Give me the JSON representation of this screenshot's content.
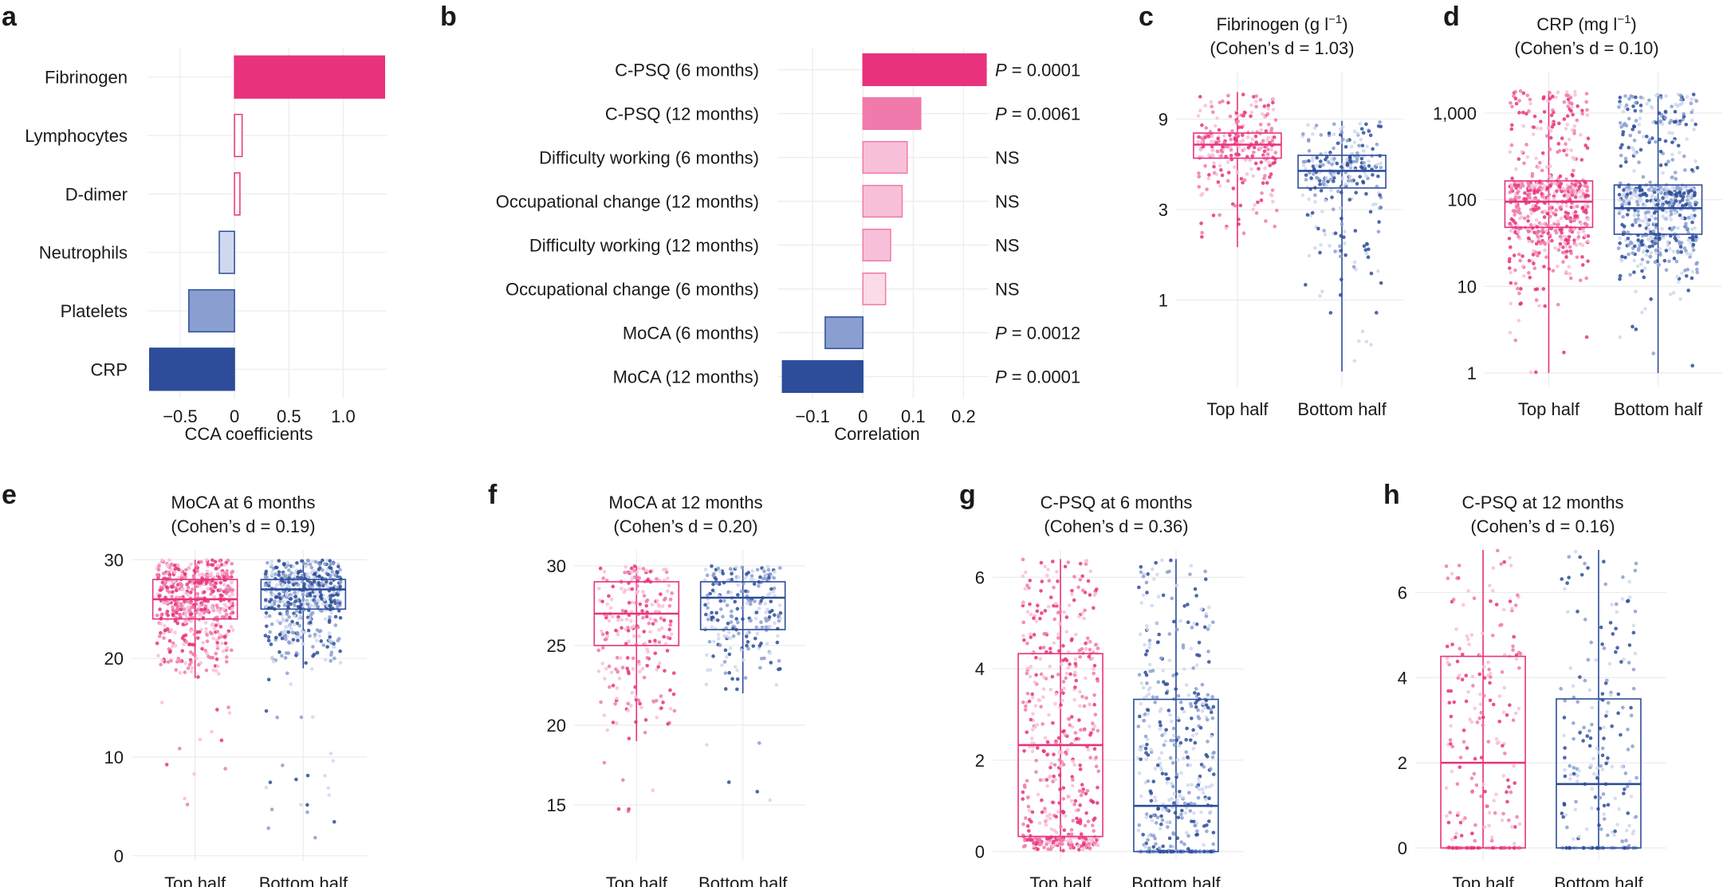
{
  "colors": {
    "pink": "#e8327c",
    "pink_mid": "#f07aab",
    "pink_light": "#f8c0d8",
    "blue": "#2d4d9a",
    "blue_mid": "#8a9fd0",
    "blue_light": "#cfd8ee",
    "grid": "#ececec"
  },
  "chart_data": [
    {
      "id": "a",
      "panel_label": "a",
      "type": "bar",
      "orientation": "horizontal",
      "title": "",
      "xlabel": "CCA coefficients",
      "categories": [
        "Fibrinogen",
        "Lymphocytes",
        "D-dimer",
        "Neutrophils",
        "Platelets",
        "CRP"
      ],
      "values": [
        1.38,
        0.07,
        0.05,
        -0.14,
        -0.42,
        -0.78
      ],
      "tone": [
        "pink_strong",
        "pink_outline",
        "pink_outline",
        "blue_light",
        "blue_mid",
        "blue_strong"
      ],
      "xlim": [
        -0.8,
        1.4
      ],
      "xticks": [
        -0.5,
        0,
        0.5,
        1.0
      ],
      "xtick_labels": [
        "−0.5",
        "0",
        "0.5",
        "1.0"
      ]
    },
    {
      "id": "b",
      "panel_label": "b",
      "type": "bar",
      "orientation": "horizontal",
      "title": "",
      "xlabel": "Correlation",
      "categories": [
        "C-PSQ (6 months)",
        "C-PSQ (12 months)",
        "Difficulty working (6 months)",
        "Occupational change (12 months)",
        "Difficulty working (12 months)",
        "Occupational change (6 months)",
        "MoCA (6 months)",
        "MoCA (12 months)"
      ],
      "values": [
        0.245,
        0.115,
        0.088,
        0.078,
        0.055,
        0.045,
        -0.075,
        -0.16
      ],
      "tone": [
        "pink_strong",
        "pink_mid",
        "pink_light",
        "pink_light",
        "pink_light",
        "pink_lighter",
        "blue_mid",
        "blue_strong"
      ],
      "annotations": [
        "P = 0.0001",
        "P = 0.0061",
        "NS",
        "NS",
        "NS",
        "NS",
        "P = 0.0012",
        "P = 0.0001"
      ],
      "xlim": [
        -0.17,
        0.25
      ],
      "xticks": [
        -0.1,
        0,
        0.1,
        0.2
      ],
      "xtick_labels": [
        "−0.1",
        "0",
        "0.1",
        "0.2"
      ]
    },
    {
      "id": "c",
      "panel_label": "c",
      "type": "box",
      "scale": "log",
      "title_line1": "Fibrinogen (g l",
      "title_sup": "−1",
      "title_line1_end": ")",
      "title_line2": "(Cohen’s d = 1.03)",
      "categories": [
        "Top half",
        "Bottom half"
      ],
      "ylim": [
        0.35,
        16
      ],
      "yticks": [
        1,
        3,
        9
      ],
      "ytick_labels": [
        "1",
        "3",
        "9"
      ],
      "boxes": [
        {
          "min": 1.9,
          "q1": 5.6,
          "median": 6.6,
          "q3": 7.6,
          "max": 12.5
        },
        {
          "min": 0.42,
          "q1": 3.9,
          "median": 4.8,
          "q3": 5.8,
          "max": 8.8
        }
      ],
      "points": [
        {
          "n": 260,
          "lo": 1.9,
          "hi": 12.5
        },
        {
          "n": 260,
          "lo": 0.42,
          "hi": 8.8
        }
      ]
    },
    {
      "id": "d",
      "panel_label": "d",
      "type": "box",
      "scale": "log",
      "title_line1": "CRP (mg l",
      "title_sup": "−1",
      "title_line1_end": ")",
      "title_line2": "(Cohen’s d = 0.10)",
      "categories": [
        "Top half",
        "Bottom half"
      ],
      "ylim": [
        0.7,
        3000
      ],
      "yticks": [
        1,
        10,
        100,
        1000
      ],
      "ytick_labels": [
        "1",
        "10",
        "100",
        "1,000"
      ],
      "boxes": [
        {
          "min": 1,
          "q1": 48,
          "median": 95,
          "q3": 165,
          "max": 1800
        },
        {
          "min": 1,
          "q1": 40,
          "median": 80,
          "q3": 148,
          "max": 1700
        }
      ],
      "points": [
        {
          "n": 600,
          "lo": 1,
          "hi": 1800
        },
        {
          "n": 600,
          "lo": 1,
          "hi": 1700
        }
      ]
    },
    {
      "id": "e",
      "panel_label": "e",
      "type": "box",
      "scale": "linear",
      "title_line1": "MoCA at 6 months",
      "title_line2": "(Cohen’s d = 0.19)",
      "categories": [
        "Top half",
        "Bottom half"
      ],
      "ylim": [
        -0.5,
        31
      ],
      "yticks": [
        0,
        10,
        20,
        30
      ],
      "ytick_labels": [
        "0",
        "10",
        "20",
        "30"
      ],
      "boxes": [
        {
          "min": 18,
          "q1": 24,
          "median": 26,
          "q3": 28,
          "max": 30
        },
        {
          "min": 19,
          "q1": 25,
          "median": 27,
          "q3": 28,
          "max": 30
        }
      ],
      "points": [
        {
          "n": 560,
          "lo": 4,
          "hi": 30
        },
        {
          "n": 560,
          "lo": 1,
          "hi": 30
        }
      ]
    },
    {
      "id": "f",
      "panel_label": "f",
      "type": "box",
      "scale": "linear",
      "title_line1": "MoCA at 12 months",
      "title_line2": "(Cohen’s d = 0.20)",
      "categories": [
        "Top half",
        "Bottom half"
      ],
      "ylim": [
        11.5,
        31
      ],
      "yticks": [
        15,
        20,
        25,
        30
      ],
      "ytick_labels": [
        "15",
        "20",
        "25",
        "30"
      ],
      "boxes": [
        {
          "min": 19,
          "q1": 25,
          "median": 27,
          "q3": 29,
          "max": 30
        },
        {
          "min": 22,
          "q1": 26,
          "median": 28,
          "q3": 29,
          "max": 30
        }
      ],
      "points": [
        {
          "n": 240,
          "lo": 14,
          "hi": 30
        },
        {
          "n": 240,
          "lo": 12,
          "hi": 30
        }
      ]
    },
    {
      "id": "g",
      "panel_label": "g",
      "type": "box",
      "scale": "linear",
      "title_line1": "C-PSQ at 6 months",
      "title_line2": "(Cohen’s d = 0.36)",
      "categories": [
        "Top half",
        "Bottom half"
      ],
      "ylim": [
        -0.2,
        6.6
      ],
      "yticks": [
        0,
        2,
        4,
        6
      ],
      "ytick_labels": [
        "0",
        "2",
        "4",
        "6"
      ],
      "boxes": [
        {
          "min": 0,
          "q1": 0.33,
          "median": 2.33,
          "q3": 4.33,
          "max": 6.4
        },
        {
          "min": 0,
          "q1": 0,
          "median": 1.0,
          "q3": 3.33,
          "max": 6.4
        }
      ],
      "points": [
        {
          "n": 520,
          "lo": 0,
          "hi": 6.4
        },
        {
          "n": 520,
          "lo": 0,
          "hi": 6.4
        }
      ]
    },
    {
      "id": "h",
      "panel_label": "h",
      "type": "box",
      "scale": "linear",
      "title_line1": "C-PSQ at 12 months",
      "title_line2": "(Cohen’s d = 0.16)",
      "categories": [
        "Top half",
        "Bottom half"
      ],
      "ylim": [
        -0.3,
        7.0
      ],
      "yticks": [
        0,
        2,
        4,
        6
      ],
      "ytick_labels": [
        "0",
        "2",
        "4",
        "6"
      ],
      "boxes": [
        {
          "min": 0,
          "q1": 0,
          "median": 2.0,
          "q3": 4.5,
          "max": 7.0
        },
        {
          "min": 0,
          "q1": 0,
          "median": 1.5,
          "q3": 3.5,
          "max": 7.0
        }
      ],
      "points": [
        {
          "n": 240,
          "lo": 0,
          "hi": 7.0
        },
        {
          "n": 240,
          "lo": 0,
          "hi": 7.0
        }
      ]
    }
  ]
}
